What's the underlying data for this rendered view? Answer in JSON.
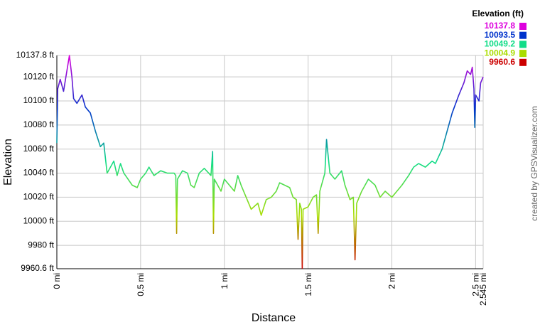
{
  "chart_data": {
    "type": "line",
    "x_label": "Distance",
    "y_label": "Elevation",
    "credit": "created by GPSVisualizer.com",
    "legend_title": "Elevation (ft)",
    "color_scale": [
      {
        "value": 10137.8,
        "color": "#dd00dd"
      },
      {
        "value": 10093.5,
        "color": "#0033cc"
      },
      {
        "value": 10049.2,
        "color": "#11dd88"
      },
      {
        "value": 10004.9,
        "color": "#aadd00"
      },
      {
        "value": 9960.6,
        "color": "#cc0000"
      }
    ],
    "grid": true,
    "xlim": [
      0,
      2.545
    ],
    "ylim": [
      9960.6,
      10137.8
    ],
    "xticks": [
      {
        "value": 0,
        "label": "0 mi"
      },
      {
        "value": 0.5,
        "label": "0.5 mi"
      },
      {
        "value": 1,
        "label": "1 mi"
      },
      {
        "value": 1.5,
        "label": "1.5 mi"
      },
      {
        "value": 2,
        "label": "2 mi"
      },
      {
        "value": 2.5,
        "label": "2.5 mi"
      },
      {
        "value": 2.545,
        "label": "2.545 mi"
      }
    ],
    "yticks": [
      {
        "value": 9960.6,
        "label": "9960.6 ft"
      },
      {
        "value": 9980,
        "label": "9980 ft"
      },
      {
        "value": 10000,
        "label": "10000 ft"
      },
      {
        "value": 10020,
        "label": "10020 ft"
      },
      {
        "value": 10040,
        "label": "10040 ft"
      },
      {
        "value": 10060,
        "label": "10060 ft"
      },
      {
        "value": 10080,
        "label": "10080 ft"
      },
      {
        "value": 10100,
        "label": "10100 ft"
      },
      {
        "value": 10120,
        "label": "10120 ft"
      },
      {
        "value": 10137.8,
        "label": "10137.8 ft"
      }
    ],
    "x": [
      0,
      0.005,
      0.02,
      0.04,
      0.06,
      0.075,
      0.09,
      0.1,
      0.12,
      0.15,
      0.17,
      0.2,
      0.23,
      0.26,
      0.28,
      0.3,
      0.32,
      0.34,
      0.36,
      0.38,
      0.4,
      0.42,
      0.45,
      0.48,
      0.5,
      0.53,
      0.55,
      0.58,
      0.62,
      0.66,
      0.7,
      0.71,
      0.715,
      0.72,
      0.75,
      0.78,
      0.8,
      0.82,
      0.85,
      0.88,
      0.92,
      0.93,
      0.935,
      0.94,
      0.96,
      0.98,
      1.0,
      1.03,
      1.06,
      1.08,
      1.1,
      1.13,
      1.16,
      1.2,
      1.22,
      1.25,
      1.28,
      1.31,
      1.33,
      1.36,
      1.39,
      1.41,
      1.43,
      1.44,
      1.45,
      1.46,
      1.465,
      1.47,
      1.5,
      1.53,
      1.55,
      1.56,
      1.57,
      1.6,
      1.61,
      1.63,
      1.66,
      1.7,
      1.72,
      1.75,
      1.77,
      1.78,
      1.79,
      1.82,
      1.86,
      1.9,
      1.93,
      1.96,
      2.0,
      2.03,
      2.06,
      2.1,
      2.13,
      2.16,
      2.2,
      2.24,
      2.26,
      2.3,
      2.33,
      2.36,
      2.4,
      2.43,
      2.45,
      2.47,
      2.48,
      2.49,
      2.495,
      2.5,
      2.52,
      2.53,
      2.545
    ],
    "series": [
      {
        "name": "Elevation",
        "values": [
          10065,
          10110,
          10118,
          10108,
          10125,
          10137.8,
          10120,
          10102,
          10098,
          10105,
          10095,
          10090,
          10075,
          10062,
          10065,
          10040,
          10045,
          10050,
          10038,
          10048,
          10040,
          10036,
          10030,
          10028,
          10035,
          10040,
          10045,
          10038,
          10042,
          10040,
          10040,
          10038,
          9990,
          10035,
          10042,
          10040,
          10030,
          10028,
          10040,
          10044,
          10038,
          10058,
          9990,
          10035,
          10030,
          10025,
          10035,
          10030,
          10025,
          10038,
          10030,
          10020,
          10010,
          10015,
          10005,
          10018,
          10020,
          10025,
          10032,
          10030,
          10028,
          10020,
          10018,
          9985,
          10015,
          10010,
          9961,
          10010,
          10012,
          10020,
          10022,
          9990,
          10025,
          10040,
          10068,
          10040,
          10035,
          10042,
          10030,
          10018,
          10020,
          9968,
          10015,
          10025,
          10035,
          10030,
          10020,
          10025,
          10020,
          10025,
          10030,
          10038,
          10045,
          10048,
          10045,
          10050,
          10048,
          10060,
          10075,
          10090,
          10105,
          10115,
          10125,
          10122,
          10128,
          10110,
          10078,
          10105,
          10100,
          10115,
          10120
        ]
      }
    ]
  }
}
